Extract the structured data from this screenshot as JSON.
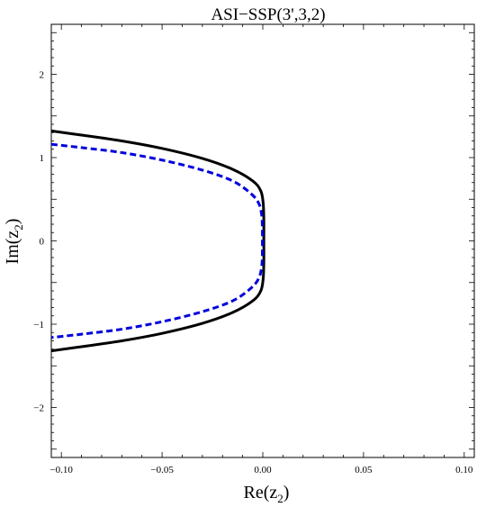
{
  "chart_data": {
    "type": "line",
    "title": "ASI−SSP(3',3,2)",
    "xlabel": {
      "main": "Re(z",
      "sub": "2",
      "end": ")"
    },
    "ylabel": {
      "main": "Im(z",
      "sub": "2",
      "end": ")"
    },
    "xlim": [
      -0.105,
      0.105
    ],
    "ylim": [
      -2.6,
      2.6
    ],
    "grid": false,
    "x_ticks": [
      {
        "value": -0.1,
        "label": "−0.10"
      },
      {
        "value": -0.05,
        "label": "−0.05"
      },
      {
        "value": 0.0,
        "label": "0.00"
      },
      {
        "value": 0.05,
        "label": "0.05"
      },
      {
        "value": 0.1,
        "label": "0.10"
      }
    ],
    "y_ticks": [
      {
        "value": -2,
        "label": "−2"
      },
      {
        "value": -1,
        "label": "−1"
      },
      {
        "value": 0,
        "label": "0"
      },
      {
        "value": 1,
        "label": "1"
      },
      {
        "value": 2,
        "label": "2"
      }
    ],
    "series": [
      {
        "style": "solid",
        "color": "#000000",
        "points": [
          [
            -0.105,
            1.32
          ],
          [
            -0.09,
            1.27
          ],
          [
            -0.07,
            1.2
          ],
          [
            -0.05,
            1.11
          ],
          [
            -0.03,
            0.99
          ],
          [
            -0.015,
            0.86
          ],
          [
            -0.005,
            0.72
          ],
          [
            -0.001,
            0.6
          ],
          [
            0.0002,
            0.45
          ],
          [
            0.0005,
            0.25
          ],
          [
            0.0005,
            0.0
          ],
          [
            0.0005,
            -0.25
          ],
          [
            0.0002,
            -0.45
          ],
          [
            -0.001,
            -0.6
          ],
          [
            -0.005,
            -0.72
          ],
          [
            -0.015,
            -0.86
          ],
          [
            -0.03,
            -0.99
          ],
          [
            -0.05,
            -1.11
          ],
          [
            -0.07,
            -1.2
          ],
          [
            -0.09,
            -1.27
          ],
          [
            -0.105,
            -1.32
          ]
        ]
      },
      {
        "style": "dashed",
        "color": "#0000dd",
        "points": [
          [
            -0.105,
            1.16
          ],
          [
            -0.09,
            1.12
          ],
          [
            -0.07,
            1.06
          ],
          [
            -0.05,
            0.97
          ],
          [
            -0.03,
            0.85
          ],
          [
            -0.015,
            0.72
          ],
          [
            -0.006,
            0.57
          ],
          [
            -0.002,
            0.45
          ],
          [
            -0.0005,
            0.3
          ],
          [
            -0.0002,
            0.12
          ],
          [
            -0.0002,
            0.0
          ],
          [
            -0.0002,
            -0.12
          ],
          [
            -0.0005,
            -0.3
          ],
          [
            -0.002,
            -0.45
          ],
          [
            -0.006,
            -0.57
          ],
          [
            -0.015,
            -0.72
          ],
          [
            -0.03,
            -0.85
          ],
          [
            -0.05,
            -0.97
          ],
          [
            -0.07,
            -1.06
          ],
          [
            -0.09,
            -1.12
          ],
          [
            -0.105,
            -1.16
          ]
        ]
      }
    ]
  }
}
